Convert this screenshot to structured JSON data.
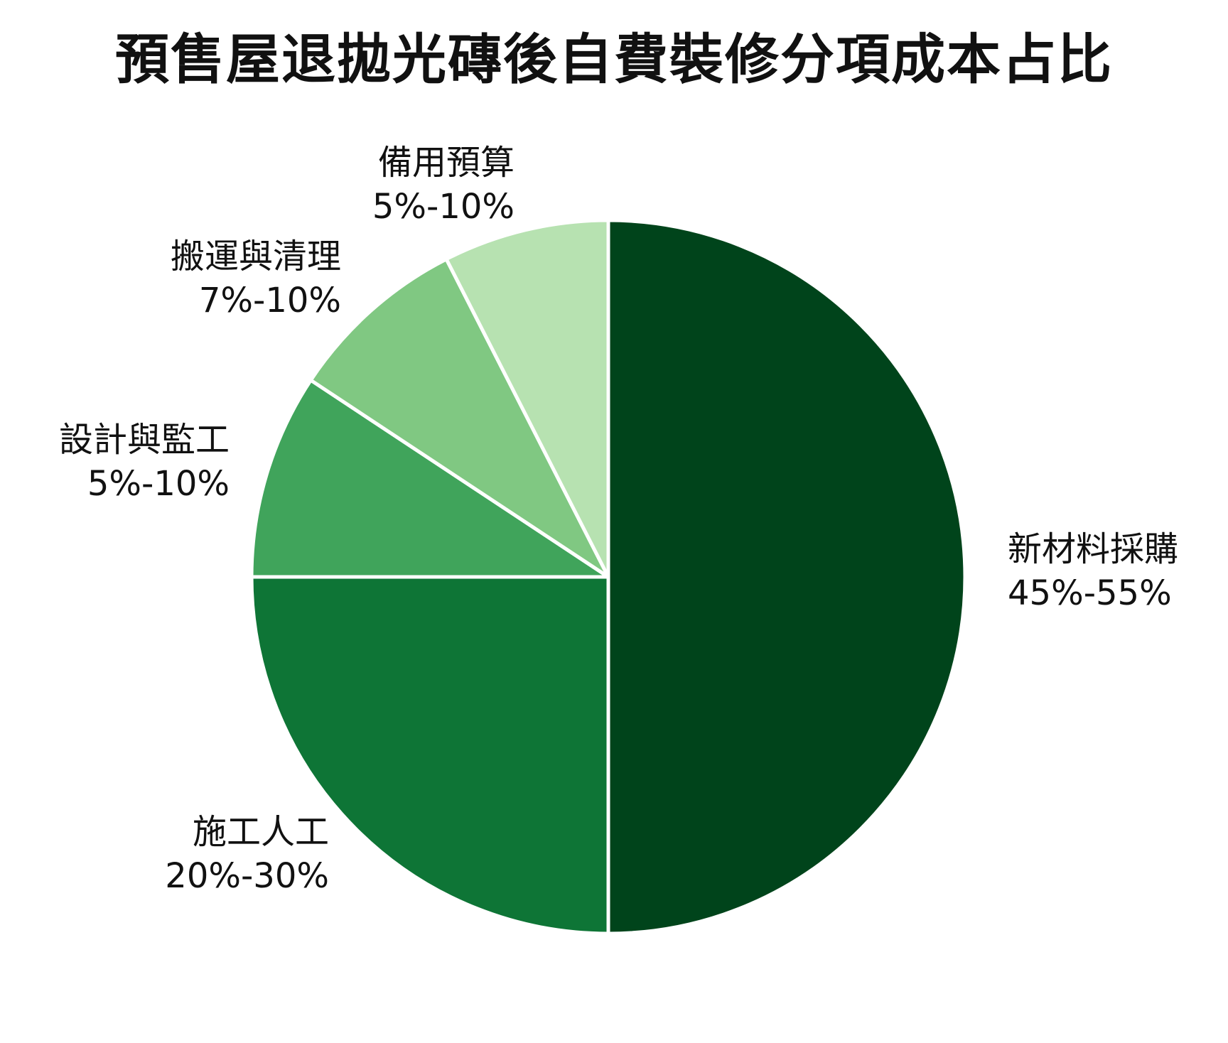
{
  "title": "預售屋退拋光磚後自費裝修分項成本占比",
  "labels": [
    {
      "name": "新材料採購",
      "range": "45%-55%"
    },
    {
      "name": "施工人工",
      "range": "20%-30%"
    },
    {
      "name": "設計與監工",
      "range": "5%-10%"
    },
    {
      "name": "搬運與清理",
      "range": "7%-10%"
    },
    {
      "name": "備用預算",
      "range": "5%-10%"
    }
  ],
  "chart_data": {
    "type": "pie",
    "title": "預售屋退拋光磚後自費裝修分項成本占比",
    "categories": [
      "新材料採購",
      "施工人工",
      "設計與監工",
      "搬運與清理",
      "備用預算"
    ],
    "values": [
      50,
      25,
      9.3,
      8.2,
      7.5
    ],
    "range_labels": [
      "45%-55%",
      "20%-30%",
      "5%-10%",
      "7%-10%",
      "5%-10%"
    ],
    "colors": [
      "#00441b",
      "#0e7536",
      "#40a45b",
      "#80c882",
      "#b7e2b1"
    ],
    "start_angle": "12 o'clock, clockwise",
    "legend": "none (labels placed outside slices)"
  }
}
